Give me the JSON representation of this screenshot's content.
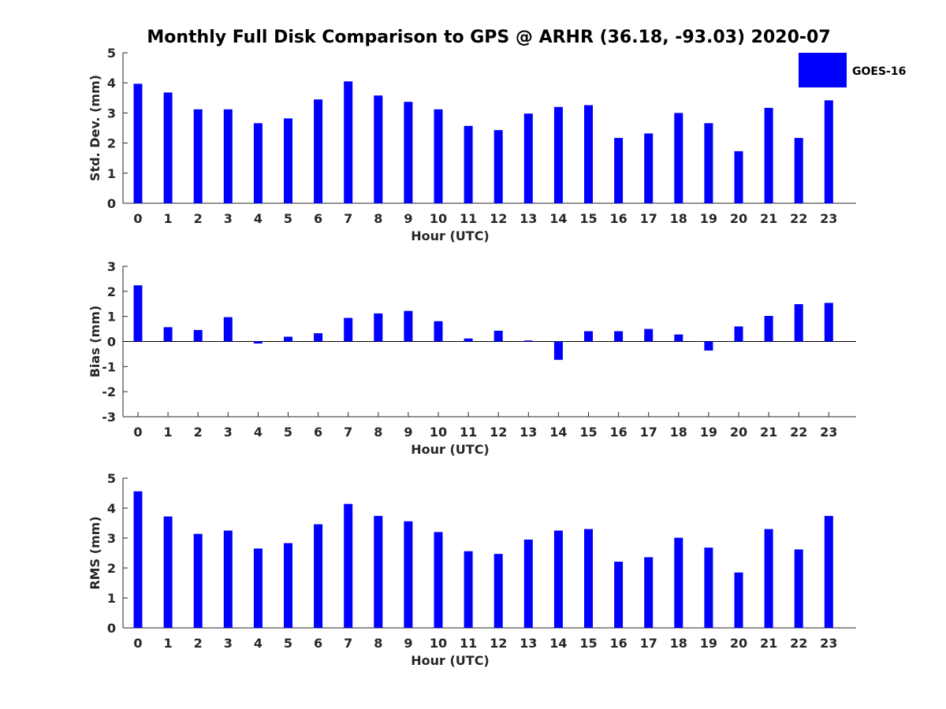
{
  "figure_title": "Monthly Full Disk Comparison to GPS @ ARHR (36.18, -93.03) 2020-07",
  "legend": {
    "label": "GOES-16",
    "color": "#0000ff",
    "placement": "top-right"
  },
  "colors": {
    "bar": "#0000ff",
    "axis": "#262626"
  },
  "chart_data": [
    {
      "type": "bar",
      "title": "",
      "xlabel": "Hour (UTC)",
      "ylabel": "Std. Dev. (mm)",
      "categories": [
        "0",
        "1",
        "2",
        "3",
        "4",
        "5",
        "6",
        "7",
        "8",
        "9",
        "10",
        "11",
        "12",
        "13",
        "14",
        "15",
        "16",
        "17",
        "18",
        "19",
        "20",
        "21",
        "22",
        "23"
      ],
      "series": [
        {
          "name": "GOES-16",
          "values": [
            3.97,
            3.68,
            3.12,
            3.12,
            2.66,
            2.82,
            3.45,
            4.05,
            3.58,
            3.37,
            3.12,
            2.57,
            2.43,
            2.98,
            3.2,
            3.26,
            2.17,
            2.32,
            3.0,
            2.66,
            1.73,
            3.17,
            2.17,
            3.42
          ]
        }
      ],
      "ylim": [
        0,
        5
      ],
      "yticks": [
        "0",
        "1",
        "2",
        "3",
        "4",
        "5"
      ],
      "grid": false
    },
    {
      "type": "bar",
      "title": "",
      "xlabel": "Hour (UTC)",
      "ylabel": "Bias (mm)",
      "categories": [
        "0",
        "1",
        "2",
        "3",
        "4",
        "5",
        "6",
        "7",
        "8",
        "9",
        "10",
        "11",
        "12",
        "13",
        "14",
        "15",
        "16",
        "17",
        "18",
        "19",
        "20",
        "21",
        "22",
        "23"
      ],
      "series": [
        {
          "name": "GOES-16",
          "values": [
            2.24,
            0.57,
            0.46,
            0.97,
            -0.08,
            0.19,
            0.33,
            0.94,
            1.12,
            1.22,
            0.81,
            0.12,
            0.43,
            0.04,
            -0.73,
            0.41,
            0.41,
            0.5,
            0.28,
            -0.36,
            0.6,
            1.02,
            1.49,
            1.54
          ]
        }
      ],
      "ylim": [
        -3,
        3
      ],
      "yticks": [
        "-3",
        "-2",
        "-1",
        "0",
        "1",
        "2",
        "3"
      ],
      "grid": false
    },
    {
      "type": "bar",
      "title": "",
      "xlabel": "Hour (UTC)",
      "ylabel": "RMS (mm)",
      "categories": [
        "0",
        "1",
        "2",
        "3",
        "4",
        "5",
        "6",
        "7",
        "8",
        "9",
        "10",
        "11",
        "12",
        "13",
        "14",
        "15",
        "16",
        "17",
        "18",
        "19",
        "20",
        "21",
        "22",
        "23"
      ],
      "series": [
        {
          "name": "GOES-16",
          "values": [
            4.56,
            3.72,
            3.14,
            3.25,
            2.65,
            2.83,
            3.46,
            4.14,
            3.74,
            3.56,
            3.2,
            2.56,
            2.47,
            2.95,
            3.25,
            3.3,
            2.21,
            2.36,
            3.01,
            2.68,
            1.85,
            3.3,
            2.62,
            3.74
          ]
        }
      ],
      "ylim": [
        0,
        5
      ],
      "yticks": [
        "0",
        "1",
        "2",
        "3",
        "4",
        "5"
      ],
      "grid": false
    }
  ]
}
